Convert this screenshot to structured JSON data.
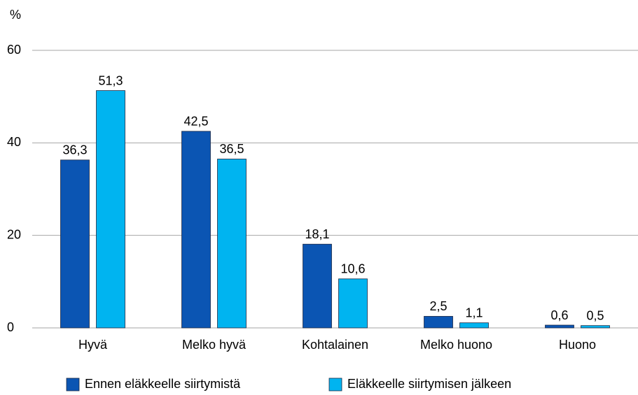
{
  "chart_data": {
    "type": "bar",
    "y_label": "%",
    "categories": [
      "Hyvä",
      "Melko hyvä",
      "Kohtalainen",
      "Melko huono",
      "Huono"
    ],
    "series": [
      {
        "name": "Ennen eläkkeelle siirtymistä",
        "color": "#0b55b3",
        "values": [
          36.3,
          42.5,
          18.1,
          2.5,
          0.6
        ],
        "value_labels": [
          "36,3",
          "42,5",
          "18,1",
          "2,5",
          "0,6"
        ]
      },
      {
        "name": "Eläkkeelle siirtymisen jälkeen",
        "color": "#00b4f0",
        "values": [
          51.3,
          36.5,
          10.6,
          1.1,
          0.5
        ],
        "value_labels": [
          "51,3",
          "36,5",
          "10,6",
          "1,1",
          "0,5"
        ]
      }
    ],
    "ylim": [
      0,
      60
    ],
    "yticks": [
      0,
      20,
      40,
      60
    ],
    "grid": true,
    "legend": "bottom"
  }
}
